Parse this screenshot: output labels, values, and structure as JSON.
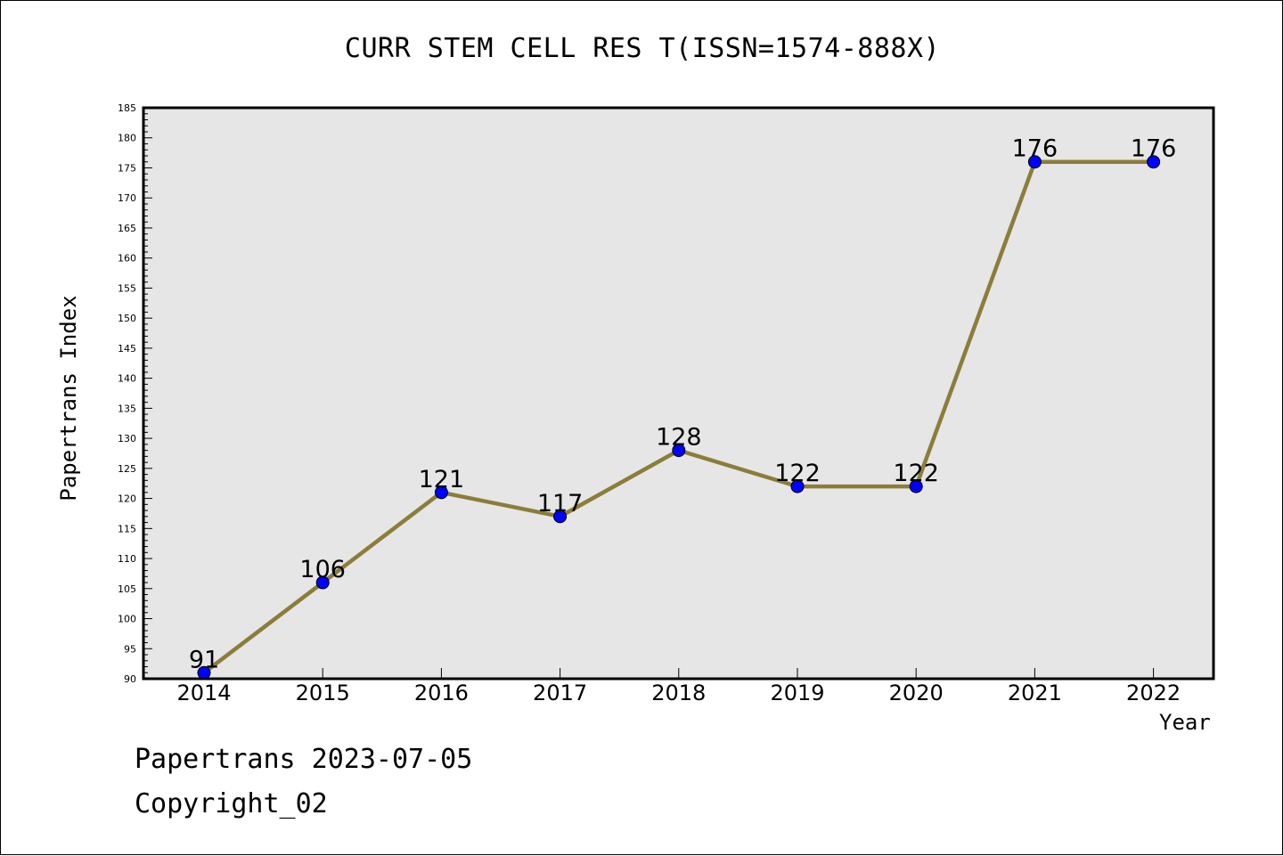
{
  "chart_data": {
    "type": "line",
    "title": "CURR STEM CELL RES T(ISSN=1574-888X)",
    "xlabel": "Year",
    "ylabel": "Papertrans Index",
    "categories": [
      "2014",
      "2015",
      "2016",
      "2017",
      "2018",
      "2019",
      "2020",
      "2021",
      "2022"
    ],
    "series": [
      {
        "values": [
          91,
          106,
          121,
          117,
          128,
          122,
          122,
          176,
          176
        ]
      }
    ],
    "ylim": [
      90,
      185
    ],
    "yticks": [
      90,
      95,
      100,
      105,
      110,
      115,
      120,
      125,
      130,
      135,
      140,
      145,
      150,
      155,
      160,
      165,
      170,
      175,
      180,
      185
    ],
    "grid": false,
    "data_labels": true,
    "colors": {
      "line": "#8b7d3a",
      "marker": "#0000ff",
      "plot_background": "#e6e6e6"
    }
  },
  "footer": {
    "line1": "Papertrans 2023-07-05",
    "line2": "Copyright_02"
  }
}
